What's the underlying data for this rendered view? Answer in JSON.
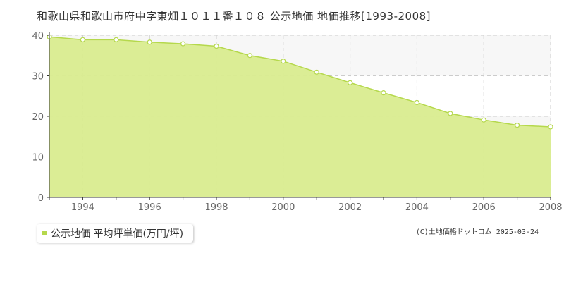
{
  "title": "和歌山県和歌山市府中字東畑１０１１番１０８ 公示地価 地価推移[1993-2008]",
  "legend": {
    "label": "公示地価 平均坪単価(万円/坪)"
  },
  "copyright": "(C)土地価格ドットコム 2025-03-24",
  "colors": {
    "fill": "#d9ec8f",
    "line": "#b5d84c",
    "grid": "#cccccc",
    "background_band": "#f7f7f7"
  },
  "chart_data": {
    "type": "area",
    "x": [
      1993,
      1994,
      1995,
      1996,
      1997,
      1998,
      1999,
      2000,
      2001,
      2002,
      2003,
      2004,
      2005,
      2006,
      2007,
      2008
    ],
    "series": [
      {
        "name": "公示地価 平均坪単価(万円/坪)",
        "values": [
          39.6,
          38.9,
          38.9,
          38.3,
          37.9,
          37.3,
          35.0,
          33.6,
          30.9,
          28.3,
          25.8,
          23.4,
          20.7,
          19.1,
          17.8,
          17.4
        ]
      }
    ],
    "xlim": [
      1993,
      2008
    ],
    "ylim": [
      0,
      40
    ],
    "x_ticks": [
      "1994",
      "1996",
      "1998",
      "2000",
      "2002",
      "2004",
      "2006",
      "2008"
    ],
    "y_ticks": [
      "0",
      "10",
      "20",
      "30",
      "40"
    ],
    "grid": true
  }
}
